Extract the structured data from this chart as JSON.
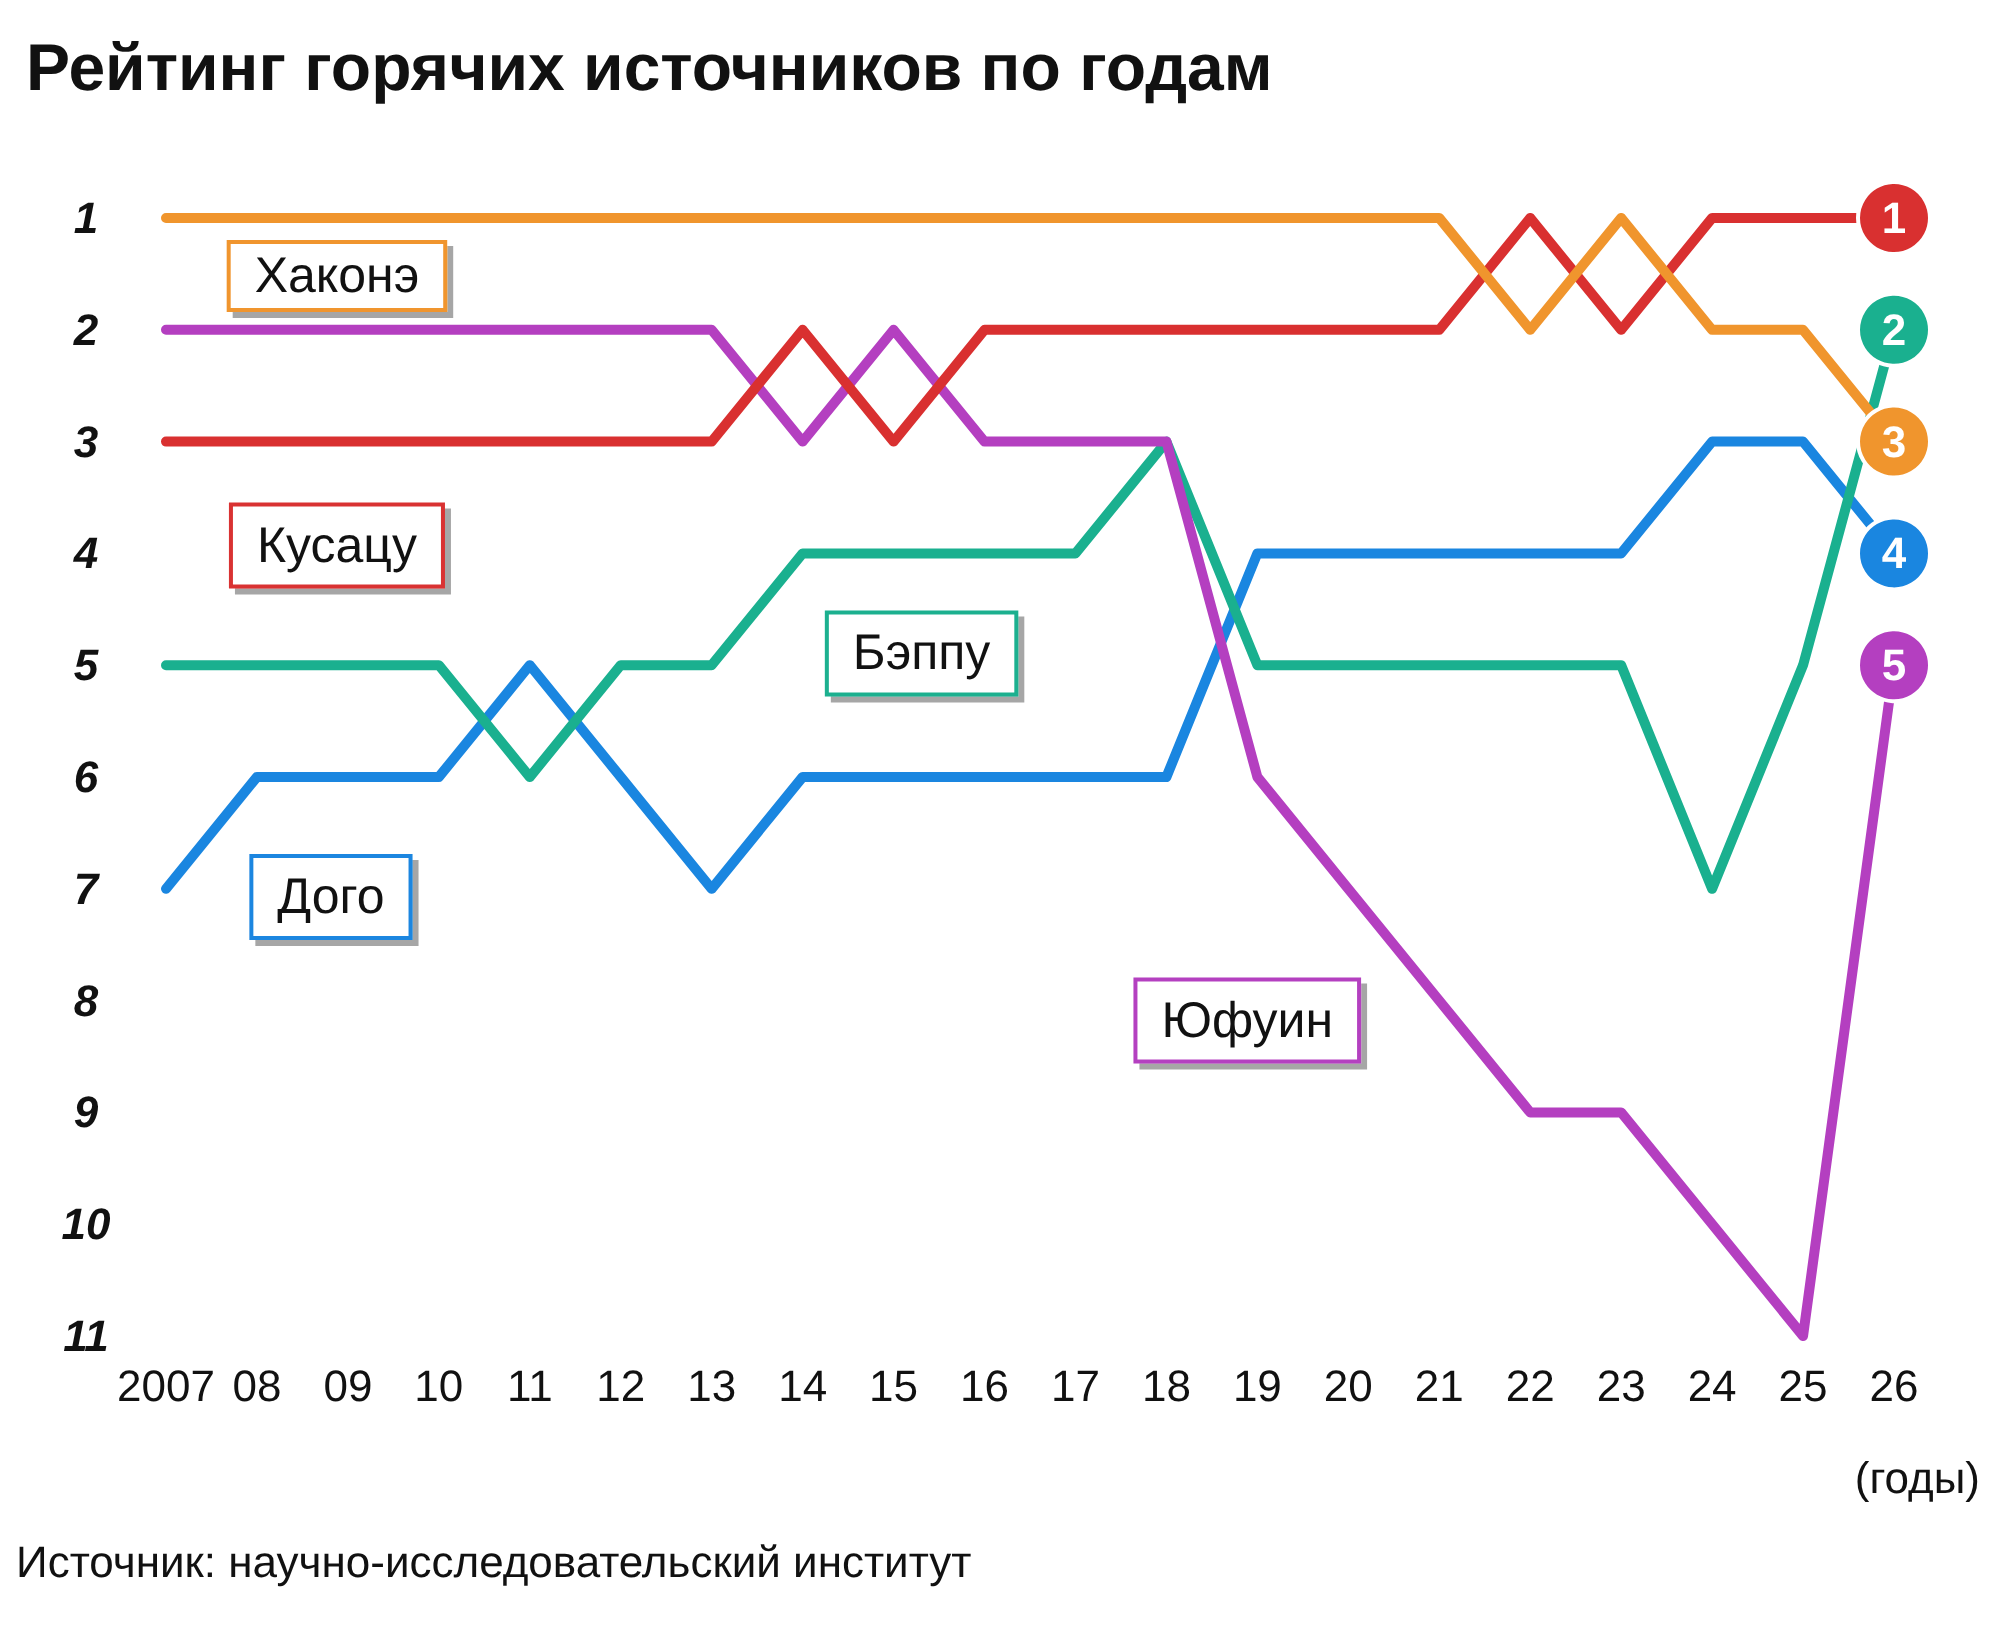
{
  "chart_data": {
    "type": "line",
    "title": "Рейтинг горячих источников по годам",
    "xlabel": "(годы)",
    "annotations": [
      "Источник: научно-исследовательский институт"
    ],
    "categories": [
      "2007",
      "08",
      "09",
      "10",
      "11",
      "12",
      "13",
      "14",
      "15",
      "16",
      "17",
      "18",
      "19",
      "20",
      "21",
      "22",
      "23",
      "24",
      "25",
      "26"
    ],
    "ylim": [
      11,
      1
    ],
    "yticks": [
      1,
      2,
      3,
      4,
      5,
      6,
      7,
      8,
      9,
      10,
      11
    ],
    "grid": false,
    "legend": false,
    "series": [
      {
        "name": "Хаконэ",
        "color": "#f0952d",
        "values": [
          1,
          1,
          1,
          1,
          1,
          1,
          1,
          1,
          1,
          1,
          1,
          1,
          1,
          1,
          1,
          2,
          1,
          2,
          2,
          3
        ],
        "value_labels": [
          null,
          null,
          null,
          null,
          null,
          null,
          null,
          null,
          null,
          null,
          null,
          null,
          null,
          null,
          null,
          null,
          null,
          null,
          null,
          "3"
        ]
      },
      {
        "name": "Кусацу",
        "color": "#d93030",
        "values": [
          3,
          3,
          3,
          3,
          3,
          3,
          3,
          2,
          3,
          2,
          2,
          2,
          2,
          2,
          2,
          1,
          2,
          1,
          1,
          1
        ],
        "value_labels": [
          null,
          null,
          null,
          null,
          null,
          null,
          null,
          null,
          null,
          null,
          null,
          null,
          null,
          null,
          null,
          null,
          null,
          null,
          null,
          "1"
        ]
      },
      {
        "name": "Юфуин",
        "color": "#b43fc0",
        "values": [
          2,
          2,
          2,
          2,
          2,
          2,
          2,
          3,
          2,
          3,
          3,
          3,
          6,
          7,
          8,
          9,
          9,
          10,
          11,
          5
        ],
        "value_labels": [
          null,
          null,
          null,
          null,
          null,
          null,
          null,
          null,
          null,
          null,
          null,
          null,
          null,
          null,
          null,
          null,
          null,
          null,
          null,
          "5"
        ]
      },
      {
        "name": "Бэппу",
        "color": "#1ab08f",
        "values": [
          5,
          5,
          5,
          5,
          6,
          5,
          5,
          4,
          4,
          4,
          4,
          3,
          5,
          5,
          5,
          5,
          5,
          7,
          5,
          2
        ],
        "value_labels": [
          null,
          null,
          null,
          null,
          null,
          null,
          null,
          null,
          null,
          null,
          null,
          null,
          null,
          null,
          null,
          null,
          null,
          null,
          null,
          "2"
        ]
      },
      {
        "name": "Дого",
        "color": "#1a86e0",
        "values": [
          7,
          6,
          6,
          6,
          5,
          6,
          7,
          6,
          6,
          6,
          6,
          6,
          4,
          4,
          4,
          4,
          4,
          3,
          3,
          4
        ],
        "value_labels": [
          null,
          null,
          null,
          null,
          null,
          null,
          null,
          null,
          null,
          null,
          null,
          null,
          null,
          null,
          null,
          null,
          null,
          null,
          null,
          "4"
        ]
      }
    ]
  }
}
